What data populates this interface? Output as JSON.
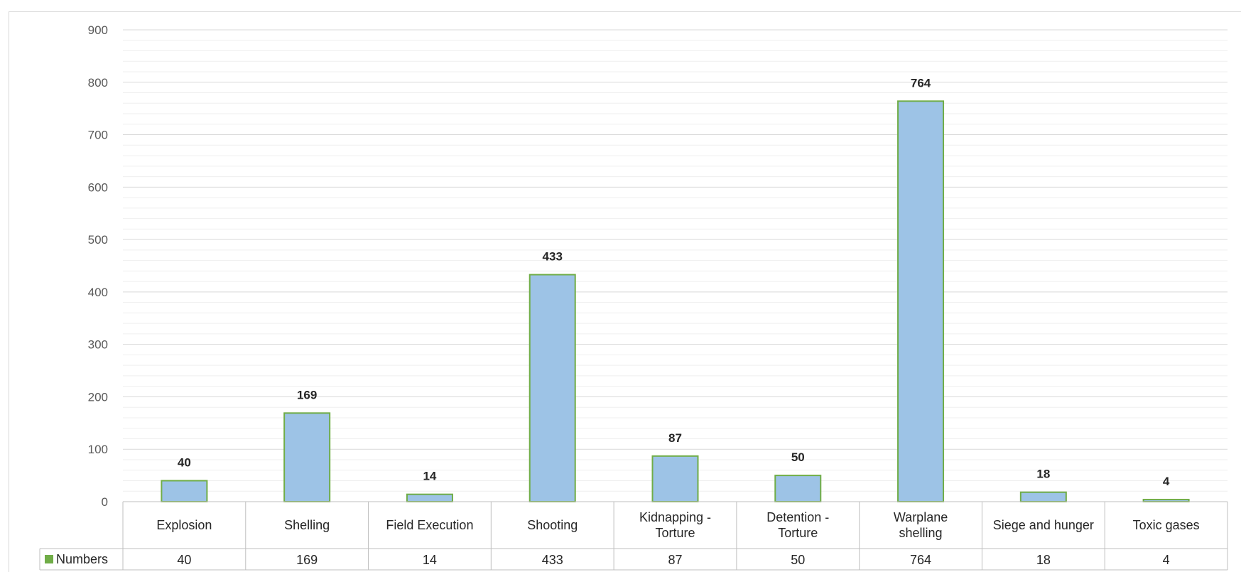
{
  "chart_data": {
    "type": "bar",
    "title": "",
    "xlabel": "",
    "ylabel": "",
    "ylim": [
      0,
      900
    ],
    "ytick_step": 100,
    "grid": true,
    "data_table": true,
    "categories": [
      [
        "Explosion"
      ],
      [
        "Shelling"
      ],
      [
        "Field Execution"
      ],
      [
        "Shooting"
      ],
      [
        "Kidnapping -",
        "Torture"
      ],
      [
        "Detention -",
        "Torture"
      ],
      [
        "Warplane",
        "shelling"
      ],
      [
        "Siege and hunger"
      ],
      [
        "Toxic gases"
      ]
    ],
    "series": [
      {
        "name": "Numbers",
        "values": [
          40,
          169,
          14,
          433,
          87,
          50,
          764,
          18,
          4
        ]
      }
    ],
    "colors": {
      "bar_fill": "#9dc3e6",
      "bar_border": "#70ad47",
      "legend_key": "#70ad47",
      "grid_major": "#d9d9d9",
      "grid_minor": "#efefef",
      "table_border": "#bfbfbf"
    }
  }
}
